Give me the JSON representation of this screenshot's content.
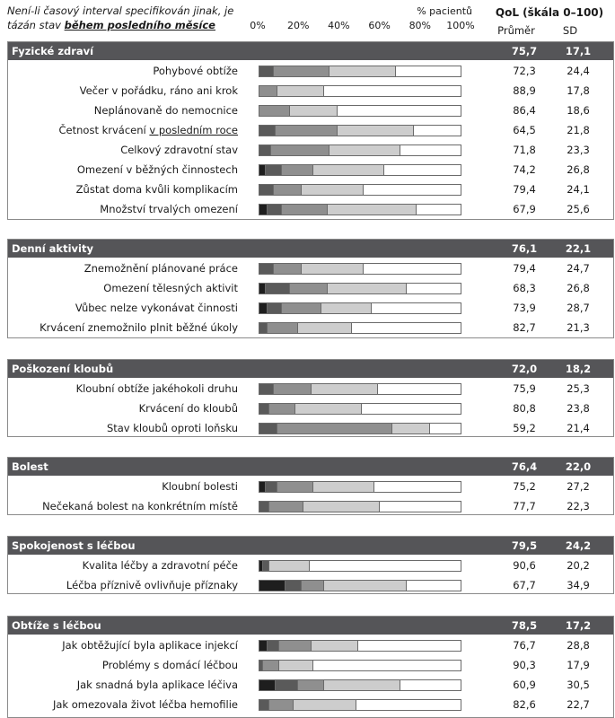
{
  "note": {
    "line1": "Není-li časový interval specifikován jinak, je",
    "line2_pre": "tázán stav ",
    "line2_bold": "během posledního měsíce"
  },
  "axis": {
    "title": "% pacientů",
    "ticks": [
      "0%",
      "20%",
      "40%",
      "60%",
      "80%",
      "100%"
    ]
  },
  "qol": {
    "title": "QoL (škála 0–100)",
    "mean_header": "Průměr",
    "sd_header": "SD"
  },
  "colors": {
    "header_bg": "#555558",
    "seg": [
      "#1e1e1e",
      "#5a5a5a",
      "#8f8f8f",
      "#cdcdcd",
      "#ffffff"
    ]
  },
  "chart_data": {
    "type": "bar",
    "stacked": true,
    "orientation": "horizontal",
    "xlim": [
      0,
      100
    ],
    "sections": [
      {
        "title": "Fyzické zdraví",
        "mean": "75,7",
        "sd": "17,1",
        "items": [
          {
            "label": "Pohybové obtíže",
            "mean": "72,3",
            "sd": "24,4",
            "segments": [
              0,
              7,
              28,
              33,
              32
            ]
          },
          {
            "label": "Večer v pořádku, ráno ani krok",
            "mean": "88,9",
            "sd": "17,8",
            "segments": [
              0,
              0,
              9,
              23,
              68
            ]
          },
          {
            "label": "Neplánovaně do nemocnice",
            "mean": "86,4",
            "sd": "18,6",
            "segments": [
              0,
              0,
              15,
              24,
              61
            ]
          },
          {
            "label_pre": "Četnost krvácení ",
            "label_u": "v posledním roce",
            "mean": "64,5",
            "sd": "21,8",
            "segments": [
              0,
              8,
              31,
              38,
              23
            ]
          },
          {
            "label": "Celkový zdravotní stav",
            "mean": "71,8",
            "sd": "23,3",
            "segments": [
              0,
              6,
              29,
              35,
              30
            ]
          },
          {
            "label": "Omezení v běžných činnostech",
            "mean": "74,2",
            "sd": "26,8",
            "segments": [
              3,
              8,
              16,
              35,
              38
            ]
          },
          {
            "label": "Zůstat doma kvůli komplikacím",
            "mean": "79,4",
            "sd": "24,1",
            "segments": [
              0,
              7,
              14,
              31,
              48
            ]
          },
          {
            "label": "Množství trvalých omezení",
            "mean": "67,9",
            "sd": "25,6",
            "segments": [
              4,
              7,
              23,
              44,
              22
            ]
          }
        ]
      },
      {
        "title": "Denní aktivity",
        "mean": "76,1",
        "sd": "22,1",
        "items": [
          {
            "label": "Znemožnění plánované práce",
            "mean": "79,4",
            "sd": "24,7",
            "segments": [
              0,
              7,
              14,
              31,
              48
            ]
          },
          {
            "label": "Omezení tělesných aktivit",
            "mean": "68,3",
            "sd": "26,8",
            "segments": [
              3,
              12,
              19,
              39,
              27
            ]
          },
          {
            "label": "Vůbec nelze vykonávat činnosti",
            "mean": "73,9",
            "sd": "28,7",
            "segments": [
              4,
              7,
              20,
              25,
              44
            ]
          },
          {
            "label": "Krvácení znemožnilo plnit běžné úkoly",
            "mean": "82,7",
            "sd": "21,3",
            "segments": [
              0,
              4,
              15,
              27,
              54
            ]
          }
        ]
      },
      {
        "title": "Poškození kloubů",
        "mean": "72,0",
        "sd": "18,2",
        "items": [
          {
            "label": "Kloubní obtíže jakéhokoli druhu",
            "mean": "75,9",
            "sd": "25,3",
            "segments": [
              0,
              7,
              19,
              33,
              41
            ]
          },
          {
            "label": "Krvácení do kloubů",
            "mean": "80,8",
            "sd": "23,8",
            "segments": [
              0,
              5,
              13,
              33,
              49
            ]
          },
          {
            "label": "Stav kloubů oproti loňsku",
            "mean": "59,2",
            "sd": "21,4",
            "segments": [
              0,
              9,
              57,
              19,
              15
            ]
          }
        ]
      },
      {
        "title": "Bolest",
        "mean": "76,4",
        "sd": "22,0",
        "items": [
          {
            "label": "Kloubní bolesti",
            "mean": "75,2",
            "sd": "27,2",
            "segments": [
              3,
              6,
              18,
              30,
              43
            ]
          },
          {
            "label": "Nečekaná bolest na konkrétním místě",
            "mean": "77,7",
            "sd": "22,3",
            "segments": [
              0,
              5,
              17,
              38,
              40
            ]
          }
        ]
      },
      {
        "title": "Spokojenost s léčbou",
        "mean": "79,5",
        "sd": "24,2",
        "items": [
          {
            "label": "Kvalita léčby a zdravotní péče",
            "mean": "90,6",
            "sd": "20,2",
            "segments": [
              2,
              3,
              0,
              20,
              75
            ]
          },
          {
            "label": "Léčba příznivě ovlivňuje příznaky",
            "mean": "67,7",
            "sd": "34,9",
            "segments": [
              13,
              8,
              11,
              41,
              27
            ]
          }
        ]
      },
      {
        "title": "Obtíže s léčbou",
        "mean": "78,5",
        "sd": "17,2",
        "items": [
          {
            "label": "Jak obtěžující byla aplikace injekcí",
            "mean": "76,7",
            "sd": "28,8",
            "segments": [
              4,
              6,
              16,
              23,
              51
            ]
          },
          {
            "label": "Problémy s domácí léčbou",
            "mean": "90,3",
            "sd": "17,9",
            "segments": [
              0,
              2,
              8,
              17,
              73
            ]
          },
          {
            "label": "Jak snadná byla aplikace léčiva",
            "mean": "60,9",
            "sd": "30,5",
            "segments": [
              8,
              11,
              13,
              38,
              30
            ]
          },
          {
            "label": "Jak omezovala život léčba hemofilie",
            "mean": "82,6",
            "sd": "22,7",
            "segments": [
              0,
              5,
              12,
              31,
              52
            ]
          }
        ]
      }
    ]
  }
}
